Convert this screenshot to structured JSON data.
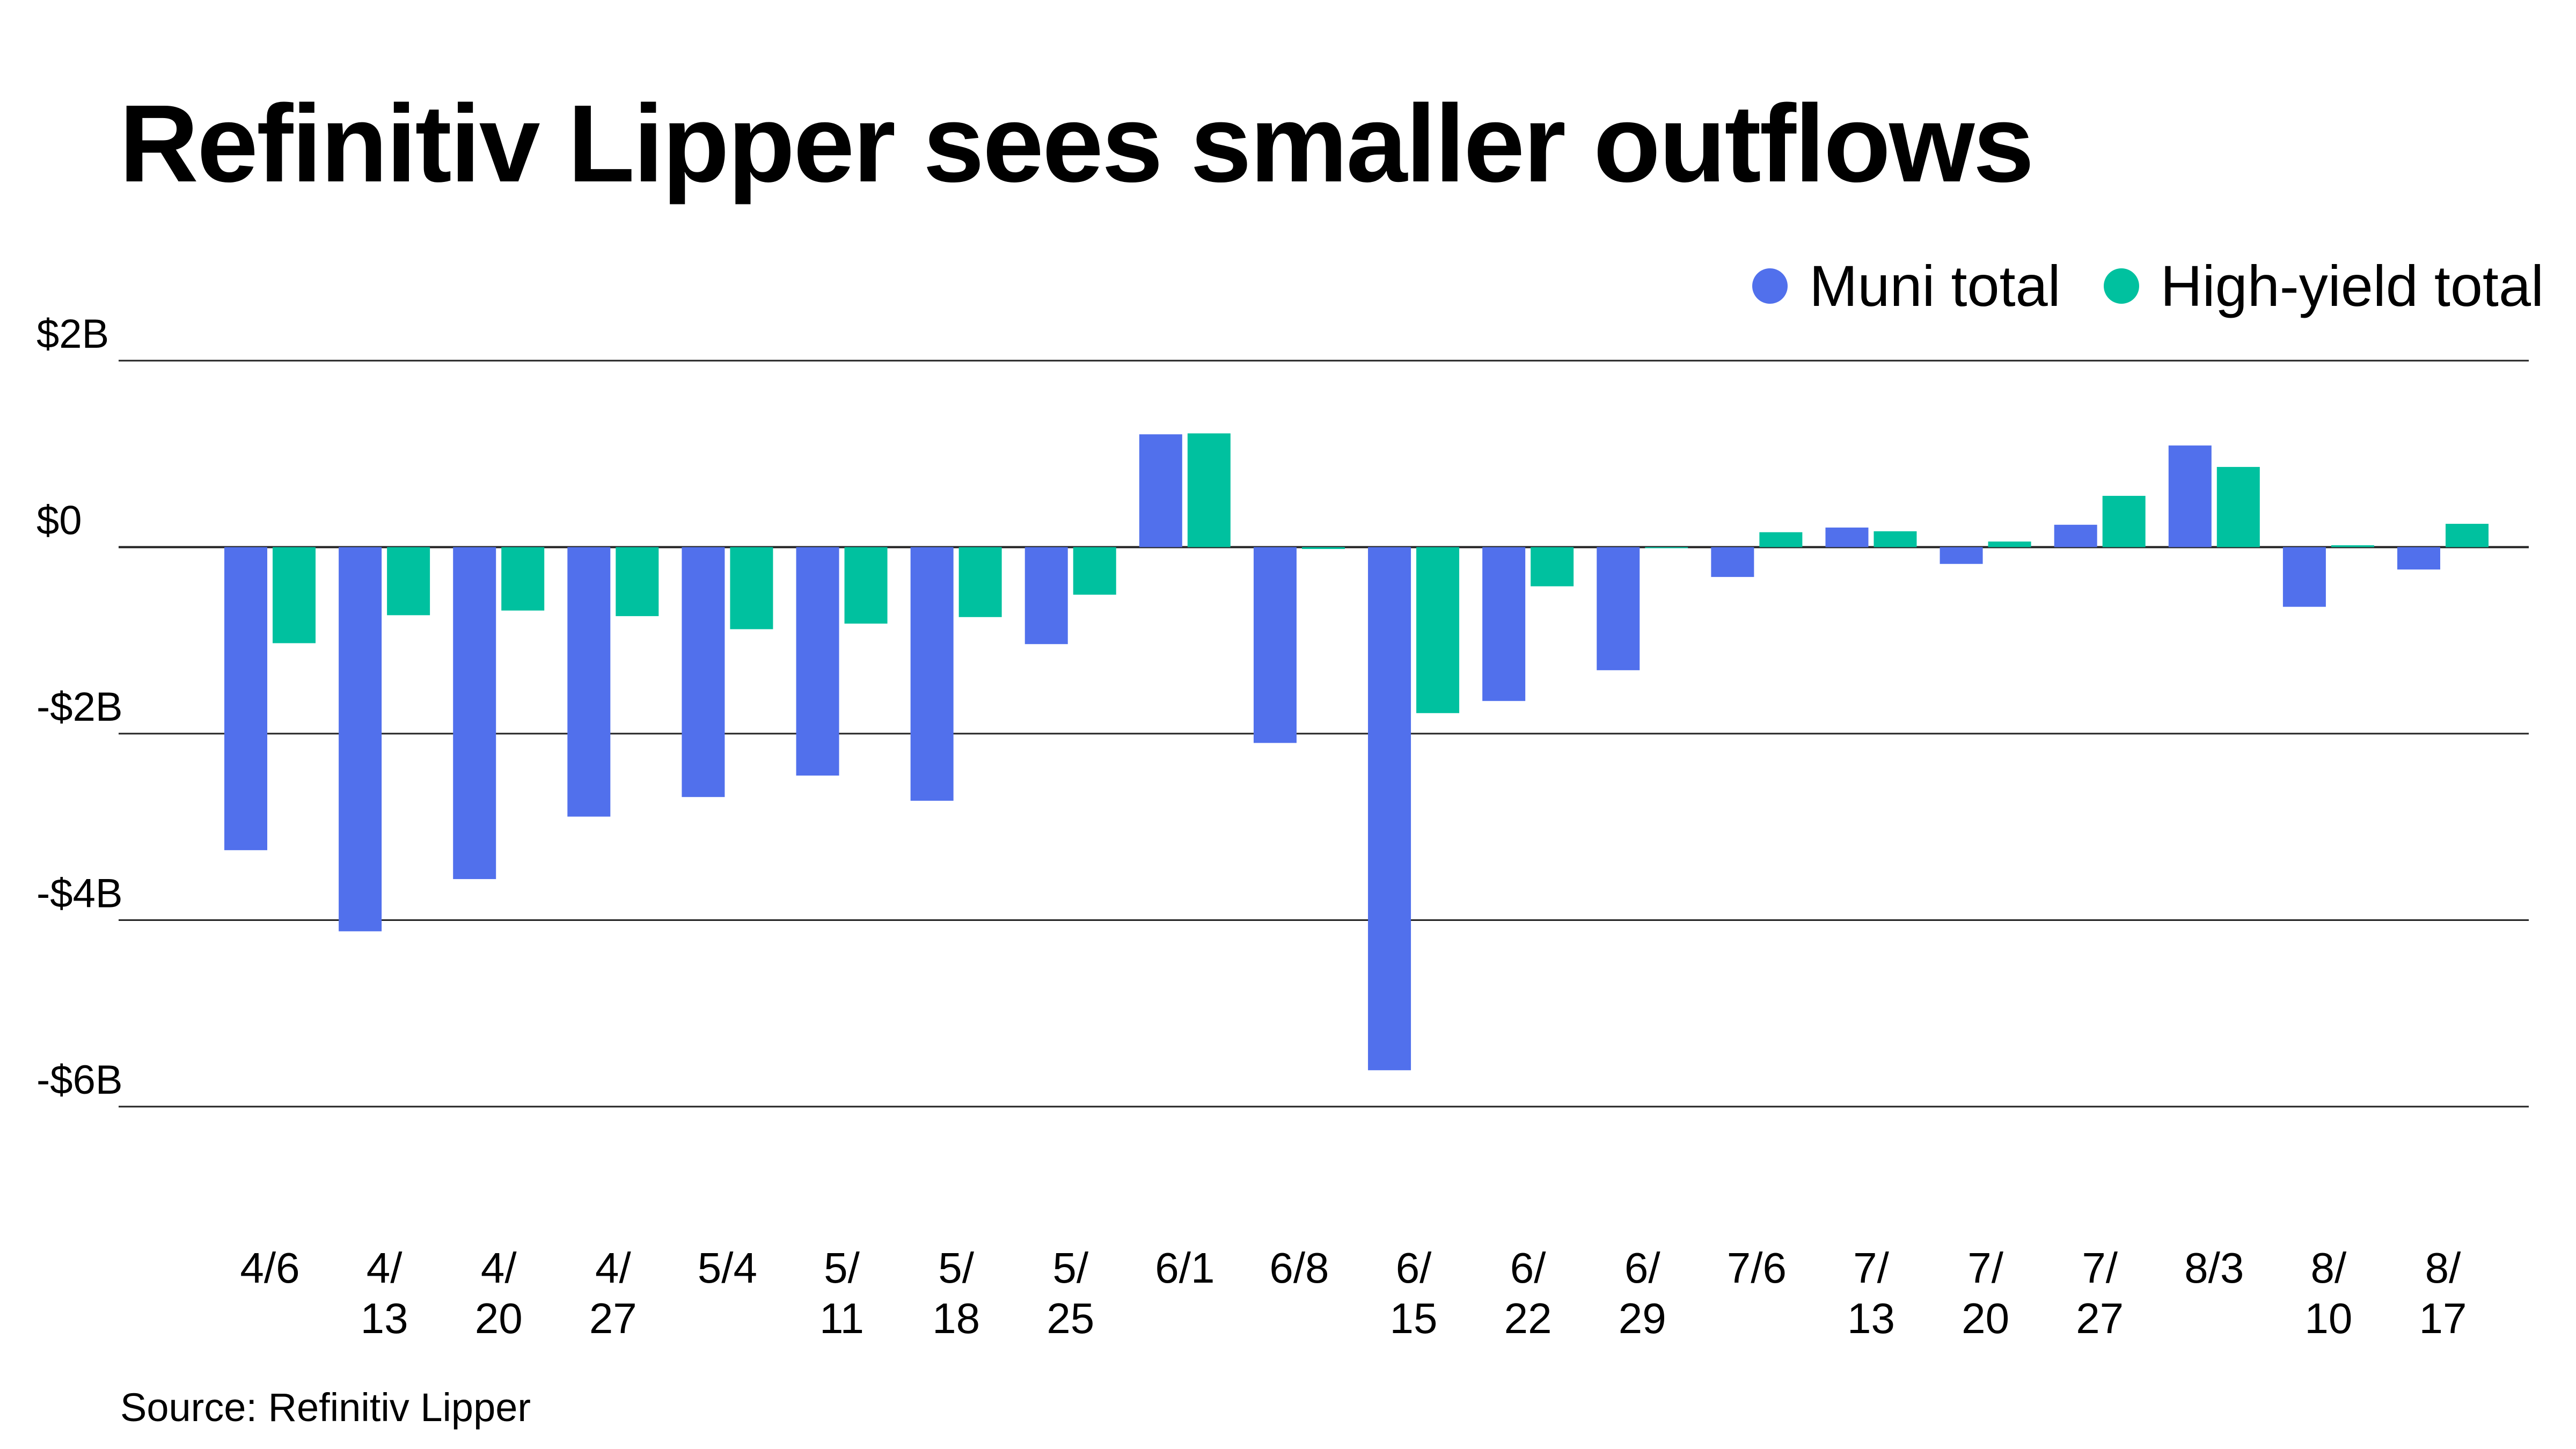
{
  "title": "Refinitiv Lipper sees smaller outflows",
  "source": "Source: Refinitiv Lipper",
  "legend": [
    {
      "label": "Muni total",
      "color": "#5170EC"
    },
    {
      "label": "High-yield total",
      "color": "#00C19F"
    }
  ],
  "chart_data": {
    "type": "bar",
    "title": "Refinitiv Lipper sees smaller outflows",
    "xlabel": "",
    "ylabel": "",
    "units": "billions USD",
    "ylim": [
      -6,
      2
    ],
    "yticks": [
      2,
      0,
      -2,
      -4,
      -6
    ],
    "ytick_labels": [
      "$2B",
      "$0",
      "-$2B",
      "-$4B",
      "-$6B"
    ],
    "grid": true,
    "legend_position": "top-right",
    "categories": [
      "4/6",
      "4/13",
      "4/20",
      "4/27",
      "5/4",
      "5/11",
      "5/18",
      "5/25",
      "6/1",
      "6/8",
      "6/15",
      "6/22",
      "6/29",
      "7/6",
      "7/13",
      "7/20",
      "7/27",
      "8/3",
      "8/10",
      "8/17"
    ],
    "category_label_lines": [
      [
        "4/6"
      ],
      [
        "4/",
        "13"
      ],
      [
        "4/",
        "20"
      ],
      [
        "4/",
        "27"
      ],
      [
        "5/4"
      ],
      [
        "5/",
        "11"
      ],
      [
        "5/",
        "18"
      ],
      [
        "5/",
        "25"
      ],
      [
        "6/1"
      ],
      [
        "6/8"
      ],
      [
        "6/",
        "15"
      ],
      [
        "6/",
        "22"
      ],
      [
        "6/",
        "29"
      ],
      [
        "7/6"
      ],
      [
        "7/",
        "13"
      ],
      [
        "7/",
        "20"
      ],
      [
        "7/",
        "27"
      ],
      [
        "8/3"
      ],
      [
        "8/",
        "10"
      ],
      [
        "8/",
        "17"
      ]
    ],
    "series": [
      {
        "name": "Muni total",
        "color": "#5170EC",
        "values": [
          -3.25,
          -4.12,
          -3.56,
          -2.89,
          -2.68,
          -2.45,
          -2.72,
          -1.04,
          1.21,
          -2.1,
          -5.61,
          -1.65,
          -1.32,
          -0.32,
          0.21,
          -0.18,
          0.24,
          1.09,
          -0.64,
          -0.24
        ]
      },
      {
        "name": "High-yield total",
        "color": "#00C19F",
        "values": [
          -1.03,
          -0.73,
          -0.68,
          -0.74,
          -0.88,
          -0.82,
          -0.75,
          -0.51,
          1.22,
          -0.02,
          -1.78,
          -0.42,
          -0.01,
          0.16,
          0.17,
          0.06,
          0.55,
          0.86,
          0.02,
          0.25
        ]
      }
    ]
  }
}
